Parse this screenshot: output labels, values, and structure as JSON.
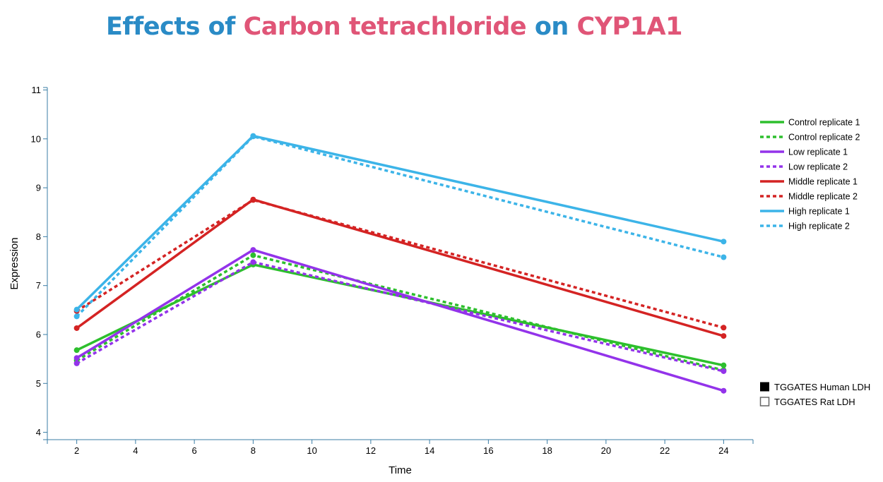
{
  "title": {
    "parts": [
      {
        "text": "Effects of ",
        "color": "#2a8bc6"
      },
      {
        "text": "Carbon tetrachloride",
        "color": "#e05577"
      },
      {
        "text": " on ",
        "color": "#2a8bc6"
      },
      {
        "text": "CYP1A1",
        "color": "#e05577"
      }
    ]
  },
  "chart_data": {
    "type": "line",
    "xlabel": "Time",
    "ylabel": "Expression",
    "xlim": [
      1,
      25
    ],
    "ylim": [
      3.85,
      11.05
    ],
    "x_ticks": [
      2,
      4,
      6,
      8,
      10,
      12,
      14,
      16,
      18,
      20,
      22,
      24
    ],
    "y_ticks": [
      4,
      5,
      6,
      7,
      8,
      9,
      10,
      11
    ],
    "grid": false,
    "legend_position": "right",
    "series": [
      {
        "name": "Control replicate 1",
        "color": "#2dbf2d",
        "dash": "solid",
        "x": [
          2,
          8,
          24
        ],
        "y": [
          5.68,
          7.43,
          5.37
        ]
      },
      {
        "name": "Control replicate 2",
        "color": "#2dbf2d",
        "dash": "dotted",
        "x": [
          2,
          8,
          24
        ],
        "y": [
          5.47,
          7.62,
          5.27
        ]
      },
      {
        "name": "Low replicate 1",
        "color": "#9333ea",
        "dash": "solid",
        "x": [
          2,
          8,
          24
        ],
        "y": [
          5.52,
          7.73,
          4.85
        ]
      },
      {
        "name": "Low replicate 2",
        "color": "#9333ea",
        "dash": "dotted",
        "x": [
          2,
          8,
          24
        ],
        "y": [
          5.41,
          7.48,
          5.25
        ]
      },
      {
        "name": "Middle replicate 1",
        "color": "#d42323",
        "dash": "solid",
        "x": [
          2,
          8,
          24
        ],
        "y": [
          6.13,
          8.76,
          5.97
        ]
      },
      {
        "name": "Middle replicate 2",
        "color": "#d42323",
        "dash": "dotted",
        "x": [
          2,
          8,
          24
        ],
        "y": [
          6.48,
          8.75,
          6.14
        ]
      },
      {
        "name": "High replicate 1",
        "color": "#3cb4e8",
        "dash": "solid",
        "x": [
          2,
          8,
          24
        ],
        "y": [
          6.51,
          10.06,
          7.9
        ]
      },
      {
        "name": "High replicate 2",
        "color": "#3cb4e8",
        "dash": "dotted",
        "x": [
          2,
          8,
          24
        ],
        "y": [
          6.37,
          10.05,
          7.58
        ]
      }
    ],
    "source_legend": [
      {
        "label": "TGGATES Human LDH",
        "marker": "filled"
      },
      {
        "label": "TGGATES Rat LDH",
        "marker": "hollow"
      }
    ]
  }
}
